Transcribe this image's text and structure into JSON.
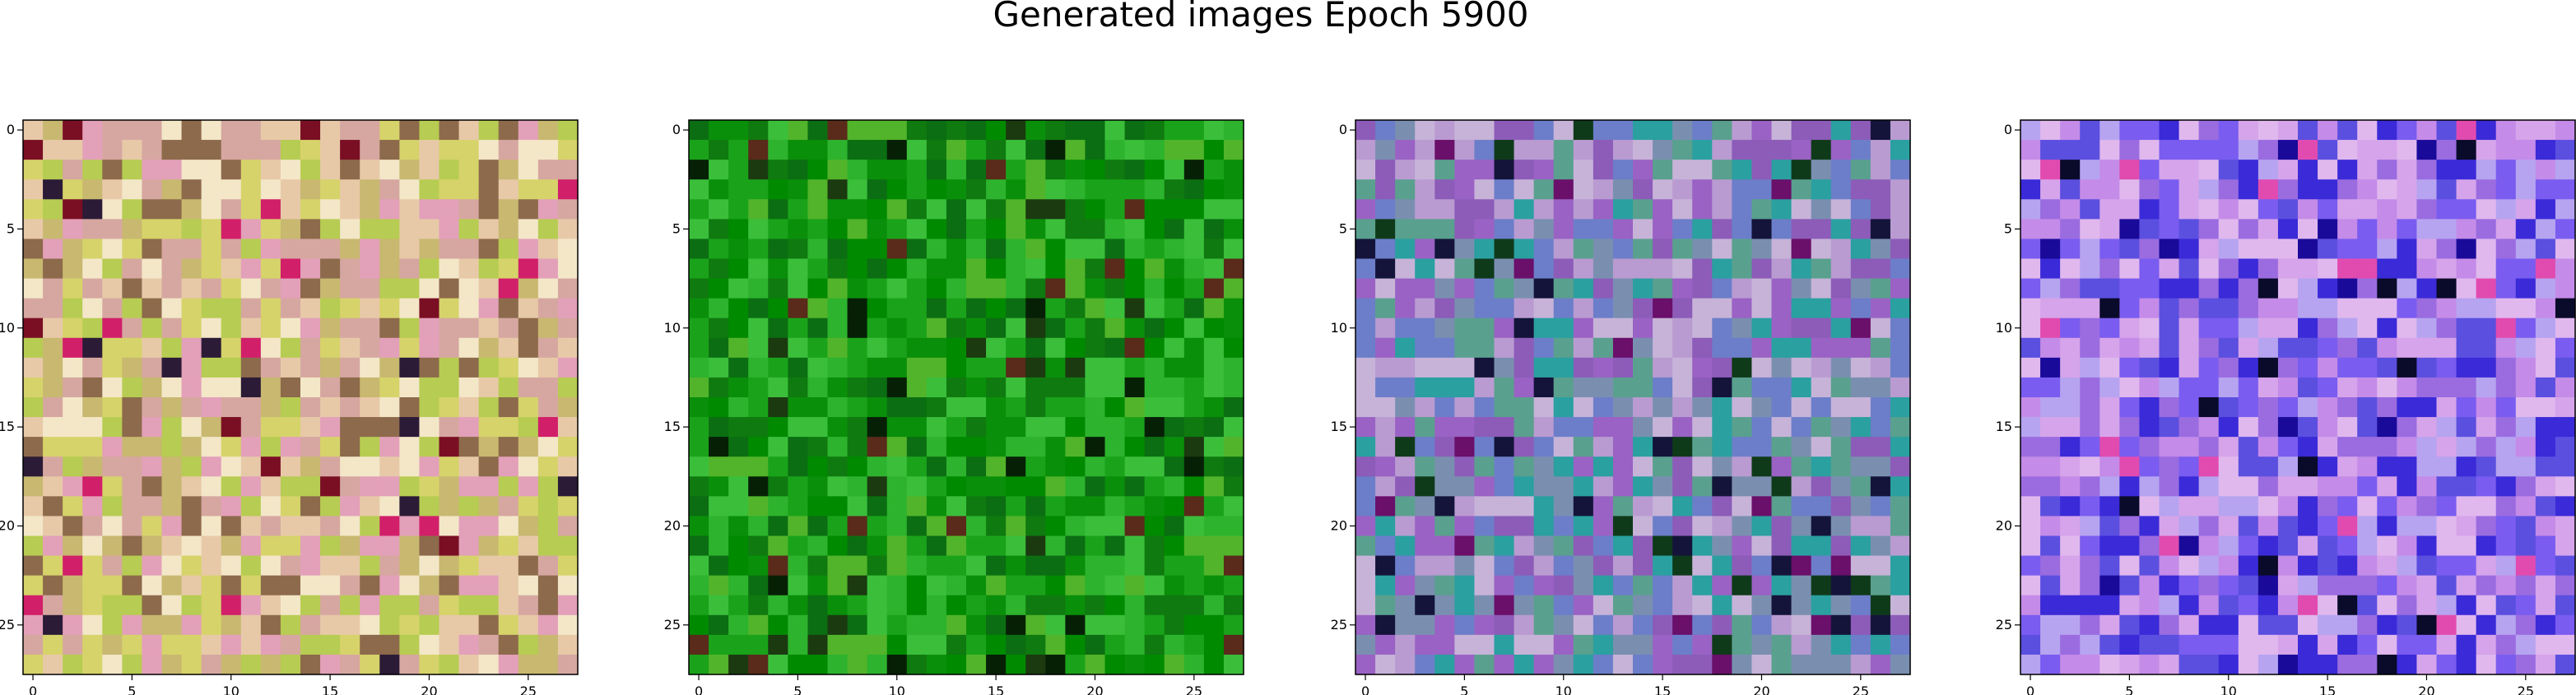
{
  "figure": {
    "title": "Generated images Epoch 5900"
  },
  "chart_data": [
    {
      "type": "heatmap",
      "palette": "warm-multicolor",
      "colors": [
        "#e7c9a8",
        "#d6a7a0",
        "#c8b870",
        "#b7cc52",
        "#e3a0b9",
        "#f3e7c8",
        "#8d6a4b",
        "#d6d36a"
      ],
      "accent_colors": [
        "#7a0f24",
        "#2b1b36",
        "#d11f6a"
      ],
      "xlim": [
        0,
        27
      ],
      "ylim": [
        27,
        0
      ],
      "x_ticks": [
        0,
        5,
        10,
        15,
        20,
        25
      ],
      "y_ticks": [
        0,
        5,
        10,
        15,
        20,
        25
      ],
      "grid": false
    },
    {
      "type": "heatmap",
      "palette": "greens",
      "colors": [
        "#0a8f0a",
        "#1aa31a",
        "#2db32d",
        "#008a00",
        "#0f7a0f",
        "#3bbf3b",
        "#52b42a",
        "#0b6e12"
      ],
      "accent_colors": [
        "#062006",
        "#1b3a10",
        "#5a2a1a"
      ],
      "xlim": [
        0,
        27
      ],
      "ylim": [
        27,
        0
      ],
      "x_ticks": [
        0,
        5,
        10,
        15,
        20,
        25
      ],
      "y_ticks": [
        0,
        5,
        10,
        15,
        20,
        25
      ],
      "grid": false
    },
    {
      "type": "heatmap",
      "palette": "cool-mixed",
      "colors": [
        "#7a8fb0",
        "#b99bd1",
        "#5aa08e",
        "#9a62c4",
        "#c7b3d8",
        "#2aa0a0",
        "#8c5cb8",
        "#6c7ec9"
      ],
      "accent_colors": [
        "#14143a",
        "#6a0f6a",
        "#0f3a1a"
      ],
      "xlim": [
        0,
        27
      ],
      "ylim": [
        27,
        0
      ],
      "x_ticks": [
        0,
        5,
        10,
        15,
        20,
        25
      ],
      "y_ticks": [
        0,
        5,
        10,
        15,
        20,
        25
      ],
      "grid": false
    },
    {
      "type": "heatmap",
      "palette": "purples-blues",
      "colors": [
        "#c58be8",
        "#9a6ce0",
        "#7a5cf0",
        "#d6a4ea",
        "#5b4fe0",
        "#b6a4f0",
        "#e0b8ee",
        "#3a2ad8"
      ],
      "accent_colors": [
        "#0a0a2a",
        "#1a0a9a",
        "#e14bb0"
      ],
      "xlim": [
        0,
        27
      ],
      "ylim": [
        27,
        0
      ],
      "x_ticks": [
        0,
        5,
        10,
        15,
        20,
        25
      ],
      "y_ticks": [
        0,
        5,
        10,
        15,
        20,
        25
      ],
      "grid": false
    }
  ]
}
